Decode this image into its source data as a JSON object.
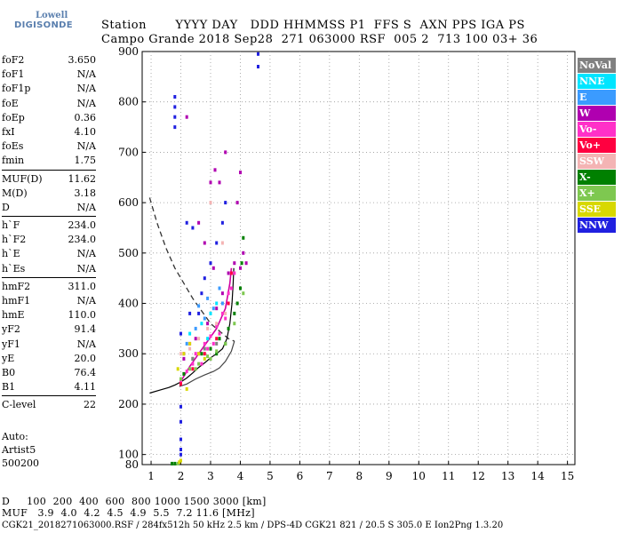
{
  "logo": {
    "line1": "Lowell",
    "line2": "DIGISONDE"
  },
  "header": {
    "line1": "Station       YYYY DAY   DDD HHMMSS P1  FFS S  AXN PPS IGA PS",
    "line2": "Campo Grande 2018 Sep28  271 063000 RSF  005 2  713 100 03+ 36"
  },
  "params": [
    {
      "key": "foF2",
      "val": "3.650"
    },
    {
      "key": "foF1",
      "val": "N/A"
    },
    {
      "key": "foF1p",
      "val": "N/A"
    },
    {
      "key": "foE",
      "val": "N/A"
    },
    {
      "key": "foEp",
      "val": "0.36"
    },
    {
      "key": "fxI",
      "val": "4.10"
    },
    {
      "key": "foEs",
      "val": "N/A"
    },
    {
      "key": "fmin",
      "val": "1.75"
    },
    {
      "sep": true
    },
    {
      "key": "MUF(D)",
      "val": "11.62"
    },
    {
      "key": "M(D)",
      "val": "3.18"
    },
    {
      "key": "D",
      "val": "N/A"
    },
    {
      "sep": true
    },
    {
      "key": "h`F",
      "val": "234.0"
    },
    {
      "key": "h`F2",
      "val": "234.0"
    },
    {
      "key": "h`E",
      "val": "N/A"
    },
    {
      "key": "h`Es",
      "val": "N/A"
    },
    {
      "sep": true
    },
    {
      "key": "hmF2",
      "val": "311.0"
    },
    {
      "key": "hmF1",
      "val": "N/A"
    },
    {
      "key": "hmE",
      "val": "110.0"
    },
    {
      "key": "yF2",
      "val": "91.4"
    },
    {
      "key": "yF1",
      "val": "N/A"
    },
    {
      "key": "yE",
      "val": "20.0"
    },
    {
      "key": "B0",
      "val": "76.4"
    },
    {
      "key": "B1",
      "val": "4.11"
    },
    {
      "sep": true
    },
    {
      "key": "C-level",
      "val": "22"
    }
  ],
  "auto": {
    "line1": "Auto:",
    "line2": "Artist5",
    "line3": "500200"
  },
  "legend": [
    {
      "label": "NoVal",
      "color": "#808080"
    },
    {
      "label": "NNE",
      "color": "#00e5ff"
    },
    {
      "label": "E",
      "color": "#3b9bff"
    },
    {
      "label": "W",
      "color": "#b000b0"
    },
    {
      "label": "Vo-",
      "color": "#ff30c8"
    },
    {
      "label": "Vo+",
      "color": "#ff0040"
    },
    {
      "label": "SSW",
      "color": "#f4b4b4"
    },
    {
      "label": "X-",
      "color": "#008000"
    },
    {
      "label": "X+",
      "color": "#7ec850"
    },
    {
      "label": "SSE",
      "color": "#d8d800"
    },
    {
      "label": "NNW",
      "color": "#2020e0"
    }
  ],
  "bottom": {
    "line1": "D     100  200  400  600  800 1000 1500 3000 [km]",
    "line2": "MUF   3.9  4.0  4.2  4.5  4.9  5.5  7.2 11.6 [MHz]",
    "line3": "CGK21_2018271063000.RSF / 284fx512h 50 kHz 2.5 km / DPS-4D CGK21 821 / 20.5 S 305.0 E Ion2Png 1.3.20"
  },
  "chart_data": {
    "type": "scatter",
    "xlim": [
      1,
      15
    ],
    "ylim": [
      80,
      900
    ],
    "xticks": [
      "1",
      "2",
      "3",
      "4",
      "5",
      "6",
      "7",
      "8",
      "9",
      "10",
      "11",
      "12",
      "13",
      "14",
      "15"
    ],
    "yticks": [
      "100",
      "200",
      "300",
      "400",
      "500",
      "600",
      "700",
      "800",
      "900"
    ],
    "ytick_values": [
      100,
      200,
      300,
      400,
      500,
      600,
      700,
      800,
      900
    ],
    "ylabel_top": "900",
    "ylabel_bottom": "80",
    "echo_clusters": [
      {
        "name": "Vo-",
        "color": "#ff30c8",
        "points": [
          [
            2.0,
            245
          ],
          [
            2.2,
            265
          ],
          [
            2.4,
            280
          ],
          [
            2.6,
            300
          ],
          [
            2.8,
            320
          ],
          [
            3.0,
            335
          ],
          [
            3.2,
            355
          ],
          [
            3.4,
            380
          ],
          [
            3.6,
            420
          ],
          [
            2.1,
            300
          ],
          [
            2.3,
            320
          ],
          [
            2.5,
            300
          ],
          [
            2.7,
            280
          ],
          [
            2.9,
            310
          ],
          [
            3.1,
            320
          ],
          [
            3.3,
            340
          ],
          [
            3.5,
            370
          ],
          [
            3.7,
            430
          ],
          [
            3.8,
            460
          ]
        ]
      },
      {
        "name": "W",
        "color": "#b000b0",
        "points": [
          [
            2.1,
            290
          ],
          [
            2.5,
            330
          ],
          [
            2.9,
            360
          ],
          [
            3.2,
            390
          ],
          [
            3.4,
            420
          ],
          [
            3.6,
            460
          ],
          [
            3.8,
            480
          ],
          [
            4.0,
            470
          ],
          [
            4.1,
            500
          ],
          [
            4.2,
            480
          ],
          [
            3.1,
            470
          ],
          [
            2.8,
            520
          ],
          [
            2.6,
            560
          ],
          [
            3.3,
            640
          ],
          [
            3.5,
            700
          ],
          [
            3.9,
            600
          ],
          [
            4.0,
            660
          ],
          [
            2.2,
            770
          ],
          [
            3.0,
            640
          ],
          [
            3.15,
            665
          ]
        ]
      },
      {
        "name": "NNW",
        "color": "#2020e0",
        "points": [
          [
            1.8,
            810
          ],
          [
            1.8,
            790
          ],
          [
            1.8,
            770
          ],
          [
            1.8,
            750
          ],
          [
            2.0,
            195
          ],
          [
            2.0,
            165
          ],
          [
            2.0,
            130
          ],
          [
            2.0,
            110
          ],
          [
            2.0,
            100
          ],
          [
            2.6,
            380
          ],
          [
            2.7,
            420
          ],
          [
            2.8,
            450
          ],
          [
            3.0,
            480
          ],
          [
            3.2,
            520
          ],
          [
            3.4,
            560
          ],
          [
            3.5,
            600
          ],
          [
            2.4,
            550
          ],
          [
            2.2,
            560
          ],
          [
            4.6,
            870
          ],
          [
            4.6,
            895
          ],
          [
            2.0,
            340
          ],
          [
            2.3,
            380
          ]
        ]
      },
      {
        "name": "X-",
        "color": "#008000",
        "points": [
          [
            2.1,
            260
          ],
          [
            2.4,
            290
          ],
          [
            2.7,
            300
          ],
          [
            3.0,
            310
          ],
          [
            3.3,
            330
          ],
          [
            3.6,
            350
          ],
          [
            3.9,
            400
          ],
          [
            4.0,
            430
          ],
          [
            4.05,
            480
          ],
          [
            4.1,
            530
          ],
          [
            1.8,
            82
          ],
          [
            1.7,
            82
          ],
          [
            3.2,
            300
          ],
          [
            3.5,
            320
          ],
          [
            3.8,
            380
          ]
        ]
      },
      {
        "name": "X+",
        "color": "#7ec850",
        "points": [
          [
            2.0,
            250
          ],
          [
            2.3,
            270
          ],
          [
            2.6,
            280
          ],
          [
            2.9,
            295
          ],
          [
            3.2,
            305
          ],
          [
            3.5,
            320
          ],
          [
            3.8,
            360
          ],
          [
            4.1,
            420
          ],
          [
            1.9,
            82
          ],
          [
            2.5,
            270
          ],
          [
            3.0,
            290
          ]
        ]
      },
      {
        "name": "E",
        "color": "#3b9bff",
        "points": [
          [
            2.2,
            320
          ],
          [
            2.5,
            350
          ],
          [
            2.8,
            370
          ],
          [
            3.1,
            390
          ],
          [
            3.4,
            400
          ],
          [
            2.6,
            395
          ],
          [
            2.9,
            410
          ],
          [
            3.3,
            430
          ]
        ]
      },
      {
        "name": "NNE",
        "color": "#00e5ff",
        "points": [
          [
            2.3,
            340
          ],
          [
            2.7,
            360
          ],
          [
            3.0,
            380
          ],
          [
            3.2,
            400
          ],
          [
            2.9,
            330
          ]
        ]
      },
      {
        "name": "Vo+",
        "color": "#ff0040",
        "points": [
          [
            2.0,
            240
          ],
          [
            2.4,
            270
          ],
          [
            2.8,
            300
          ],
          [
            3.2,
            330
          ],
          [
            3.6,
            400
          ],
          [
            3.7,
            460
          ]
        ]
      },
      {
        "name": "SSE",
        "color": "#d8d800",
        "points": [
          [
            1.9,
            270
          ],
          [
            2.1,
            300
          ],
          [
            2.3,
            320
          ],
          [
            2.6,
            300
          ],
          [
            2.2,
            230
          ],
          [
            1.95,
            85
          ],
          [
            2.0,
            88
          ],
          [
            2.8,
            290
          ]
        ]
      },
      {
        "name": "SSW",
        "color": "#f4b4b4",
        "points": [
          [
            2.0,
            300
          ],
          [
            2.3,
            310
          ],
          [
            2.6,
            330
          ],
          [
            2.9,
            350
          ],
          [
            3.2,
            360
          ],
          [
            3.5,
            380
          ],
          [
            3.0,
            600
          ],
          [
            3.4,
            520
          ]
        ]
      },
      {
        "name": "NoVal",
        "color": "#808080",
        "points": [
          [
            2.4,
            290
          ],
          [
            2.8,
            310
          ],
          [
            3.2,
            320
          ]
        ]
      }
    ],
    "muf_curve_dashed": [
      [
        0.95,
        610
      ],
      [
        1.2,
        560
      ],
      [
        1.5,
        510
      ],
      [
        1.8,
        470
      ],
      [
        2.1,
        440
      ],
      [
        2.4,
        410
      ],
      [
        2.7,
        385
      ],
      [
        3.0,
        360
      ],
      [
        3.3,
        345
      ],
      [
        3.6,
        330
      ],
      [
        3.8,
        325
      ]
    ],
    "trace_curve": [
      [
        0.95,
        222
      ],
      [
        1.3,
        228
      ],
      [
        1.6,
        233
      ],
      [
        1.8,
        238
      ],
      [
        2.0,
        244
      ],
      [
        2.2,
        252
      ],
      [
        2.4,
        262
      ],
      [
        2.6,
        273
      ],
      [
        2.8,
        282
      ],
      [
        3.0,
        292
      ],
      [
        3.2,
        300
      ],
      [
        3.4,
        310
      ],
      [
        3.55,
        330
      ],
      [
        3.65,
        360
      ],
      [
        3.72,
        400
      ],
      [
        3.76,
        440
      ],
      [
        3.78,
        470
      ]
    ],
    "profile_curve": [
      [
        1.95,
        235
      ],
      [
        2.2,
        240
      ],
      [
        2.5,
        250
      ],
      [
        2.8,
        258
      ],
      [
        3.1,
        265
      ],
      [
        3.3,
        272
      ],
      [
        3.5,
        285
      ],
      [
        3.7,
        305
      ],
      [
        3.8,
        325
      ]
    ],
    "virtual_trace_magenta": [
      [
        2.0,
        245
      ],
      [
        2.3,
        275
      ],
      [
        2.6,
        300
      ],
      [
        2.9,
        325
      ],
      [
        3.2,
        350
      ],
      [
        3.5,
        390
      ],
      [
        3.65,
        440
      ],
      [
        3.7,
        470
      ]
    ]
  }
}
